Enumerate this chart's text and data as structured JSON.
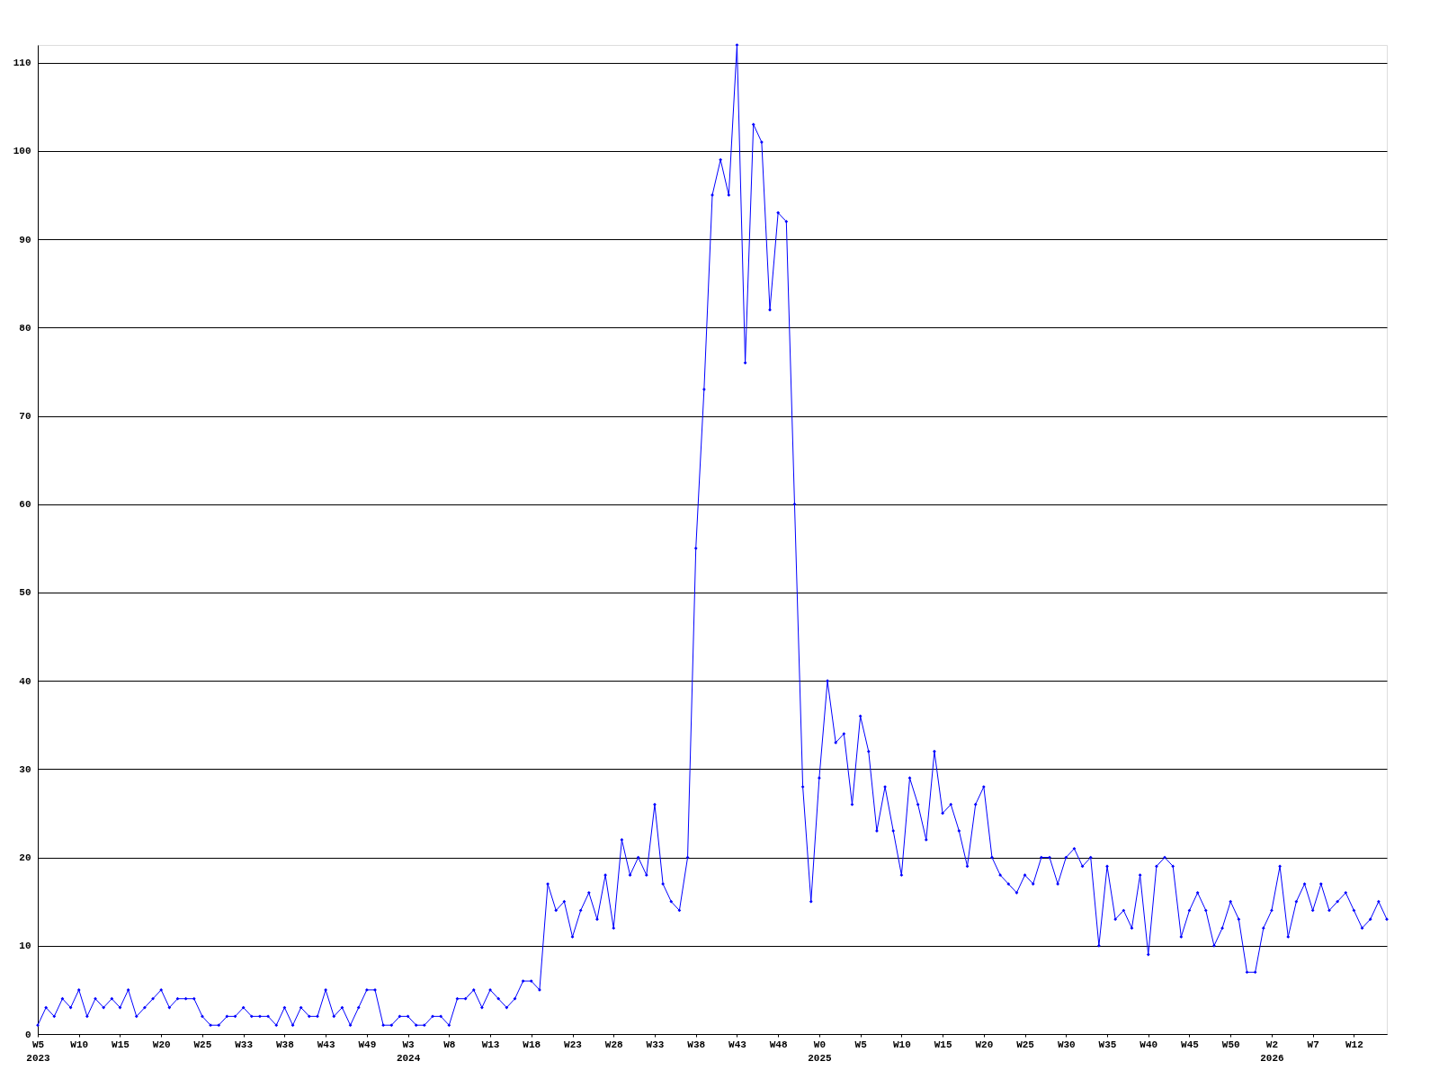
{
  "chart_data": {
    "type": "line",
    "categories": [
      "W5\n2023",
      null,
      null,
      null,
      null,
      "W10",
      null,
      null,
      null,
      null,
      "W15",
      null,
      null,
      null,
      null,
      "W20",
      null,
      null,
      null,
      null,
      "W25",
      null,
      null,
      null,
      null,
      "W33",
      null,
      null,
      null,
      null,
      "W38",
      null,
      null,
      null,
      null,
      "W43",
      null,
      null,
      null,
      null,
      "W49",
      null,
      null,
      null,
      null,
      "W3\n2024",
      null,
      null,
      null,
      null,
      "W8",
      null,
      null,
      null,
      null,
      "W13",
      null,
      null,
      null,
      null,
      "W18",
      null,
      null,
      null,
      null,
      "W23",
      null,
      null,
      null,
      null,
      "W28",
      null,
      null,
      null,
      null,
      "W33",
      null,
      null,
      null,
      null,
      "W38",
      null,
      null,
      null,
      null,
      "W43",
      null,
      null,
      null,
      null,
      "W48",
      null,
      null,
      null,
      null,
      "W0\n2025",
      null,
      null,
      null,
      null,
      "W5",
      null,
      null,
      null,
      null,
      "W10",
      null,
      null,
      null,
      null,
      "W15",
      null,
      null,
      null,
      null,
      "W20",
      null,
      null,
      null,
      null,
      "W25",
      null,
      null,
      null,
      null,
      "W30",
      null,
      null,
      null,
      null,
      "W35",
      null,
      null,
      null,
      null,
      "W40",
      null,
      null,
      null,
      null,
      "W45",
      null,
      null,
      null,
      null,
      "W50",
      null,
      null,
      null,
      null,
      "W2\n2026",
      null,
      null,
      null,
      null,
      "W7",
      null,
      null,
      null,
      null,
      "W12",
      null,
      null,
      null,
      null
    ],
    "series": [
      {
        "color": "#0000ff",
        "values": [
          1,
          3,
          2,
          4,
          3,
          5,
          2,
          4,
          3,
          4,
          3,
          5,
          2,
          3,
          4,
          5,
          3,
          4,
          4,
          4,
          2,
          1,
          1,
          2,
          2,
          3,
          2,
          2,
          2,
          1,
          3,
          1,
          3,
          2,
          2,
          5,
          2,
          3,
          1,
          3,
          5,
          5,
          1,
          1,
          2,
          2,
          1,
          1,
          2,
          2,
          1,
          4,
          4,
          5,
          3,
          5,
          4,
          3,
          4,
          6,
          6,
          5,
          17,
          14,
          15,
          11,
          14,
          16,
          13,
          18,
          12,
          22,
          18,
          20,
          18,
          26,
          17,
          15,
          14,
          20,
          55,
          73,
          95,
          99,
          95,
          112,
          76,
          103,
          101,
          82,
          93,
          92,
          60,
          28,
          15,
          29,
          40,
          33,
          34,
          26,
          36,
          32,
          23,
          28,
          23,
          18,
          29,
          26,
          22,
          32,
          25,
          26,
          23,
          19,
          26,
          28,
          20,
          18,
          17,
          16,
          18,
          17,
          20,
          20,
          17,
          20,
          21,
          19,
          20,
          10,
          19,
          13,
          14,
          12,
          18,
          9,
          19,
          20,
          19,
          11,
          14,
          16,
          14,
          10,
          12,
          15,
          13,
          7,
          7,
          12,
          14,
          19,
          11,
          15,
          17,
          14,
          17,
          14,
          15,
          16,
          14,
          12,
          13,
          15,
          13
        ]
      }
    ],
    "ylim": [
      0,
      112
    ],
    "yticks": [
      0,
      10,
      20,
      30,
      40,
      50,
      60,
      70,
      80,
      90,
      100,
      110
    ],
    "grid": "y",
    "marker": "diamond",
    "line_style": "solid"
  }
}
